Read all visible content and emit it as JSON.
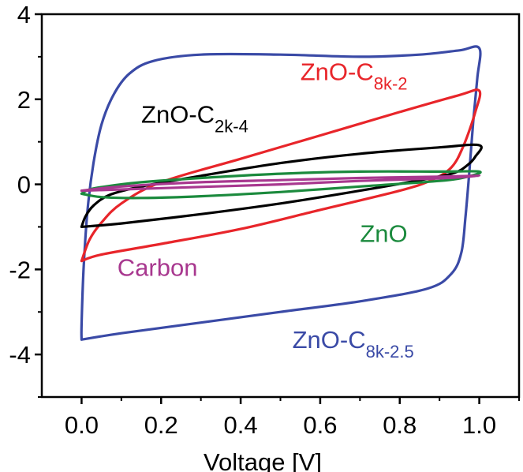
{
  "chart_data": {
    "type": "line",
    "title": "",
    "xlabel": "Voltage [V]",
    "ylabel": "",
    "xlim": [
      -0.1,
      1.1
    ],
    "ylim": [
      -5,
      4
    ],
    "x_ticks": [
      0.0,
      0.2,
      0.4,
      0.6,
      0.8,
      1.0
    ],
    "x_tick_labels": [
      "0.0",
      "0.2",
      "0.4",
      "0.6",
      "0.8",
      "1.0"
    ],
    "y_ticks": [
      -4,
      -2,
      0,
      2,
      4
    ],
    "y_tick_labels": [
      "-4",
      "-2",
      "0",
      "2",
      "4"
    ],
    "grid": false,
    "legend": "none",
    "series": [
      {
        "name": "ZnO-C8k-2.5",
        "label_main": "ZnO-C",
        "label_sub": "8k-2.5",
        "color": "#3a4aa6",
        "points": [
          [
            0.0,
            -3.65
          ],
          [
            0.0,
            -3.3
          ],
          [
            0.005,
            -2.0
          ],
          [
            0.015,
            -0.6
          ],
          [
            0.03,
            0.5
          ],
          [
            0.05,
            1.4
          ],
          [
            0.08,
            2.1
          ],
          [
            0.12,
            2.6
          ],
          [
            0.18,
            2.9
          ],
          [
            0.3,
            3.05
          ],
          [
            0.5,
            3.05
          ],
          [
            0.7,
            3.0
          ],
          [
            0.85,
            3.05
          ],
          [
            0.95,
            3.15
          ],
          [
            1.0,
            3.2
          ],
          [
            0.995,
            2.5
          ],
          [
            0.985,
            1.5
          ],
          [
            0.975,
            0.3
          ],
          [
            0.965,
            -0.8
          ],
          [
            0.955,
            -1.6
          ],
          [
            0.93,
            -2.1
          ],
          [
            0.87,
            -2.45
          ],
          [
            0.7,
            -2.75
          ],
          [
            0.5,
            -3.0
          ],
          [
            0.3,
            -3.25
          ],
          [
            0.1,
            -3.5
          ],
          [
            0.0,
            -3.65
          ]
        ]
      },
      {
        "name": "ZnO-C8k-2",
        "label_main": "ZnO-C",
        "label_sub": "8k-2",
        "color": "#e8252a",
        "points": [
          [
            0.0,
            -1.8
          ],
          [
            0.02,
            -1.3
          ],
          [
            0.05,
            -0.9
          ],
          [
            0.1,
            -0.45
          ],
          [
            0.2,
            0.05
          ],
          [
            0.4,
            0.6
          ],
          [
            0.6,
            1.15
          ],
          [
            0.8,
            1.7
          ],
          [
            0.95,
            2.1
          ],
          [
            1.0,
            2.2
          ],
          [
            0.99,
            1.7
          ],
          [
            0.96,
            0.9
          ],
          [
            0.93,
            0.4
          ],
          [
            0.88,
            0.1
          ],
          [
            0.8,
            -0.15
          ],
          [
            0.6,
            -0.6
          ],
          [
            0.4,
            -1.05
          ],
          [
            0.2,
            -1.4
          ],
          [
            0.05,
            -1.65
          ],
          [
            0.0,
            -1.8
          ]
        ]
      },
      {
        "name": "ZnO-C2k-4",
        "label_main": "ZnO-C",
        "label_sub": "2k-4",
        "color": "#000000",
        "points": [
          [
            0.0,
            -1.0
          ],
          [
            0.01,
            -0.75
          ],
          [
            0.03,
            -0.5
          ],
          [
            0.07,
            -0.25
          ],
          [
            0.15,
            -0.05
          ],
          [
            0.3,
            0.2
          ],
          [
            0.5,
            0.5
          ],
          [
            0.7,
            0.72
          ],
          [
            0.9,
            0.87
          ],
          [
            1.0,
            0.92
          ],
          [
            0.99,
            0.65
          ],
          [
            0.97,
            0.45
          ],
          [
            0.94,
            0.28
          ],
          [
            0.88,
            0.15
          ],
          [
            0.7,
            -0.15
          ],
          [
            0.5,
            -0.45
          ],
          [
            0.3,
            -0.7
          ],
          [
            0.1,
            -0.92
          ],
          [
            0.0,
            -1.0
          ]
        ]
      },
      {
        "name": "ZnO",
        "label_main": "ZnO",
        "label_sub": "",
        "color": "#1b8a3d",
        "points": [
          [
            0.0,
            -0.22
          ],
          [
            0.02,
            -0.12
          ],
          [
            0.06,
            -0.05
          ],
          [
            0.15,
            0.05
          ],
          [
            0.3,
            0.15
          ],
          [
            0.5,
            0.25
          ],
          [
            0.7,
            0.3
          ],
          [
            0.9,
            0.3
          ],
          [
            1.0,
            0.3
          ],
          [
            0.97,
            0.18
          ],
          [
            0.9,
            0.08
          ],
          [
            0.7,
            -0.05
          ],
          [
            0.5,
            -0.18
          ],
          [
            0.3,
            -0.28
          ],
          [
            0.15,
            -0.32
          ],
          [
            0.05,
            -0.3
          ],
          [
            0.0,
            -0.22
          ]
        ]
      },
      {
        "name": "Carbon",
        "label_main": "Carbon",
        "label_sub": "",
        "color": "#a8388f",
        "points": [
          [
            0.0,
            -0.15
          ],
          [
            0.1,
            -0.05
          ],
          [
            0.3,
            0.05
          ],
          [
            0.5,
            0.1
          ],
          [
            0.7,
            0.15
          ],
          [
            0.9,
            0.18
          ],
          [
            1.0,
            0.2
          ],
          [
            0.9,
            0.14
          ],
          [
            0.7,
            0.08
          ],
          [
            0.5,
            0.0
          ],
          [
            0.3,
            -0.06
          ],
          [
            0.1,
            -0.12
          ],
          [
            0.0,
            -0.15
          ]
        ]
      }
    ]
  }
}
